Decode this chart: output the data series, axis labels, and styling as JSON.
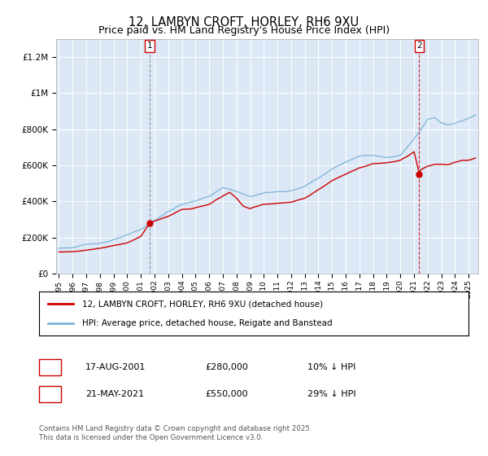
{
  "title": "12, LAMBYN CROFT, HORLEY, RH6 9XU",
  "subtitle": "Price paid vs. HM Land Registry's House Price Index (HPI)",
  "hpi_label": "HPI: Average price, detached house, Reigate and Banstead",
  "property_label": "12, LAMBYN CROFT, HORLEY, RH6 9XU (detached house)",
  "legend_footer": "Contains HM Land Registry data © Crown copyright and database right 2025.\nThis data is licensed under the Open Government Licence v3.0.",
  "transaction1_date": "17-AUG-2001",
  "transaction1_price": "£280,000",
  "transaction1_hpi": "10% ↓ HPI",
  "transaction2_date": "21-MAY-2021",
  "transaction2_price": "£550,000",
  "transaction2_hpi": "29% ↓ HPI",
  "hpi_color": "#7ab4d8",
  "property_color": "#cc0000",
  "background_color": "#ffffff",
  "plot_bg_color": "#dce8f5",
  "grid_color": "#ffffff",
  "ylim": [
    0,
    1300000
  ],
  "xlim_start": 1994.8,
  "xlim_end": 2025.7,
  "transaction1_x": 2001.63,
  "transaction1_y": 280000,
  "transaction2_x": 2021.38,
  "transaction2_y": 550000,
  "t1_dashed_color": "#888888",
  "t2_dashed_color": "#cc0000"
}
